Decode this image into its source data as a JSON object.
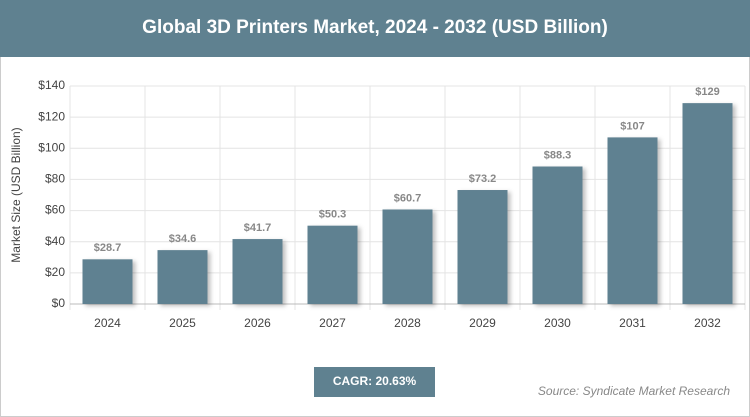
{
  "chart_data": {
    "type": "bar",
    "title": "Global 3D Printers Market, 2024 - 2032 (USD Billion)",
    "y_label": "Market Size (USD Billion)",
    "categories": [
      "2024",
      "2025",
      "2026",
      "2027",
      "2028",
      "2029",
      "2030",
      "2031",
      "2032"
    ],
    "values": [
      28.7,
      34.6,
      41.7,
      50.3,
      60.7,
      73.2,
      88.3,
      107,
      129
    ],
    "value_labels": [
      "$28.7",
      "$34.6",
      "$41.7",
      "$50.3",
      "$60.7",
      "$73.2",
      "$88.3",
      "$107",
      "$129"
    ],
    "color": "#5f8191",
    "ylim": [
      0,
      140
    ],
    "yticks": [
      {
        "value": 0,
        "label": "$0"
      },
      {
        "value": 20,
        "label": "$20"
      },
      {
        "value": 40,
        "label": "$40"
      },
      {
        "value": 60,
        "label": "$60"
      },
      {
        "value": 80,
        "label": "$80"
      },
      {
        "value": 100,
        "label": "$100"
      },
      {
        "value": 120,
        "label": "$120"
      },
      {
        "value": 140,
        "label": "$140"
      }
    ],
    "grid": true,
    "cagr_label": "CAGR: 20.63%",
    "source": "Source: Syndicate Market Research"
  }
}
